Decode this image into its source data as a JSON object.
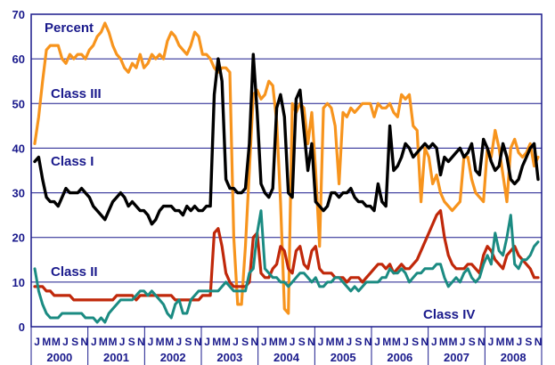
{
  "chart_data": {
    "type": "line",
    "ylim": [
      0,
      70
    ],
    "yticks": [
      0,
      10,
      20,
      30,
      40,
      50,
      60,
      70
    ],
    "grid": "horizontal",
    "legend": "inline-labels",
    "x_month_labels": [
      "J",
      "M",
      "M",
      "J",
      "S",
      "N"
    ],
    "years": [
      "2000",
      "2001",
      "2002",
      "2003",
      "2004",
      "2005",
      "2006",
      "2007",
      "2008"
    ],
    "annotations": {
      "ylabel": "Percent",
      "class3": "Class III",
      "class1": "Class I",
      "class2": "Class II",
      "class4": "Class IV"
    },
    "series": [
      {
        "name": "Class III",
        "color": "#f7941d",
        "values": [
          41,
          47,
          55,
          62,
          63,
          63,
          63,
          60,
          59,
          61,
          60,
          61,
          61,
          60,
          62,
          63,
          65,
          66,
          68,
          66,
          63,
          61,
          60,
          58,
          57,
          59,
          58,
          61,
          58,
          59,
          61,
          60,
          61,
          60,
          64,
          66,
          65,
          63,
          62,
          61,
          63,
          66,
          65,
          61,
          61,
          60,
          58,
          57,
          58,
          58,
          57,
          20,
          5,
          5,
          18,
          35,
          52,
          53,
          51,
          52,
          55,
          54,
          46,
          28,
          4,
          3,
          50,
          48,
          50,
          49,
          41,
          48,
          35,
          18,
          49,
          50,
          49,
          45,
          32,
          48,
          47,
          49,
          48,
          49,
          50,
          50,
          50,
          47,
          50,
          49,
          49,
          50,
          48,
          47,
          52,
          51,
          52,
          45,
          44,
          28,
          40,
          38,
          32,
          34,
          30,
          28,
          27,
          26,
          27,
          28,
          38,
          38,
          33,
          30,
          29,
          28,
          40,
          38,
          44,
          40,
          34,
          28,
          40,
          42,
          39,
          38,
          39,
          41,
          36,
          38
        ]
      },
      {
        "name": "Class I",
        "color": "#000000",
        "values": [
          37,
          38,
          33,
          29,
          28,
          28,
          27,
          29,
          31,
          30,
          30,
          30,
          31,
          30,
          29,
          27,
          26,
          25,
          24,
          26,
          28,
          29,
          30,
          29,
          27,
          28,
          27,
          26,
          26,
          25,
          23,
          24,
          26,
          27,
          27,
          27,
          26,
          26,
          25,
          27,
          26,
          27,
          26,
          26,
          27,
          27,
          52,
          60,
          55,
          33,
          31,
          31,
          30,
          30,
          31,
          41,
          61,
          48,
          32,
          30,
          29,
          31,
          49,
          52,
          47,
          30,
          29,
          51,
          53,
          44,
          35,
          41,
          28,
          27,
          26,
          27,
          30,
          30,
          29,
          30,
          30,
          31,
          29,
          28,
          28,
          27,
          27,
          26,
          32,
          28,
          27,
          45,
          35,
          36,
          38,
          41,
          40,
          38,
          39,
          40,
          41,
          40,
          41,
          40,
          34,
          38,
          37,
          38,
          39,
          40,
          38,
          39,
          41,
          35,
          34,
          42,
          40,
          37,
          35,
          36,
          41,
          38,
          33,
          32,
          33,
          36,
          38,
          40,
          41,
          33
        ]
      },
      {
        "name": "Class II",
        "color": "#c0280a",
        "values": [
          9,
          9,
          9,
          8,
          8,
          7,
          7,
          7,
          7,
          7,
          6,
          6,
          6,
          6,
          6,
          6,
          6,
          6,
          6,
          6,
          6,
          7,
          7,
          7,
          7,
          7,
          6,
          7,
          7,
          7,
          7,
          7,
          7,
          7,
          7,
          7,
          6,
          6,
          6,
          6,
          6,
          6,
          6,
          7,
          7,
          7,
          21,
          22,
          18,
          12,
          10,
          9,
          9,
          9,
          9,
          10,
          20,
          21,
          12,
          11,
          11,
          13,
          14,
          18,
          17,
          13,
          12,
          17,
          18,
          14,
          13,
          17,
          18,
          13,
          12,
          12,
          12,
          11,
          11,
          11,
          10,
          11,
          11,
          11,
          10,
          11,
          12,
          13,
          14,
          14,
          13,
          14,
          12,
          13,
          14,
          13,
          13,
          14,
          15,
          17,
          19,
          21,
          23,
          25,
          26,
          20,
          16,
          14,
          13,
          13,
          13,
          14,
          14,
          13,
          12,
          16,
          18,
          17,
          15,
          14,
          13,
          16,
          17,
          18,
          16,
          15,
          14,
          13,
          11,
          11
        ]
      },
      {
        "name": "Class IV",
        "color": "#1b8b82",
        "values": [
          13,
          8,
          5,
          3,
          2,
          2,
          2,
          3,
          3,
          3,
          3,
          3,
          3,
          2,
          2,
          2,
          1,
          2,
          1,
          3,
          4,
          5,
          6,
          6,
          6,
          6,
          7,
          8,
          8,
          7,
          8,
          7,
          6,
          5,
          3,
          2,
          5,
          6,
          3,
          3,
          6,
          7,
          8,
          8,
          8,
          8,
          8,
          8,
          9,
          10,
          9,
          8,
          8,
          8,
          8,
          12,
          13,
          21,
          26,
          13,
          12,
          11,
          11,
          10,
          10,
          9,
          10,
          11,
          12,
          12,
          11,
          10,
          11,
          9,
          9,
          10,
          10,
          11,
          11,
          10,
          9,
          8,
          9,
          8,
          9,
          10,
          10,
          10,
          10,
          11,
          11,
          13,
          12,
          12,
          13,
          12,
          10,
          11,
          12,
          12,
          13,
          13,
          13,
          14,
          14,
          11,
          9,
          10,
          11,
          10,
          12,
          13,
          11,
          10,
          11,
          14,
          16,
          14,
          21,
          17,
          16,
          20,
          25,
          14,
          13,
          15,
          15,
          16,
          18,
          19
        ]
      }
    ]
  }
}
